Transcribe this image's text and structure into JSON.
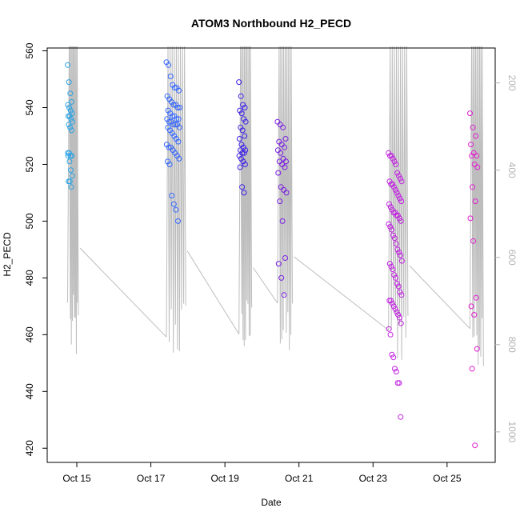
{
  "chart_data": {
    "type": "scatter",
    "title": "ATOM3 Northbound H2_PECD",
    "xlabel": "Date",
    "ylabel": "H2_PECD",
    "x_ticks": [
      {
        "label": "Oct 15",
        "day": 15
      },
      {
        "label": "Oct 17",
        "day": 17
      },
      {
        "label": "Oct 19",
        "day": 19
      },
      {
        "label": "Oct 21",
        "day": 21
      },
      {
        "label": "Oct 23",
        "day": 23
      },
      {
        "label": "Oct 25",
        "day": 25
      }
    ],
    "xlim": [
      "Oct 14.2",
      "Oct 26.3"
    ],
    "ylim": [
      415,
      561
    ],
    "y_ticks": [
      420,
      440,
      460,
      480,
      500,
      520,
      540,
      560
    ],
    "y2_ticks": [
      200,
      400,
      600,
      800,
      1000
    ],
    "y2lim": [
      120,
      1070
    ],
    "y2_color": "#b3b3b3",
    "grid": false,
    "colors": {
      "oct14": "#29a3e6",
      "oct17": "#3366ff",
      "oct19": "#3b1fe8",
      "oct20": "#7a1fe0",
      "oct23": "#c020e0",
      "oct25": "#e020d0",
      "line": "#bdbdbd"
    },
    "series": [
      {
        "color_key": "oct14",
        "day_from": 14.75,
        "day_to": 14.88,
        "values": [
          555,
          549,
          545,
          542,
          541,
          540,
          539,
          538,
          537,
          537,
          536,
          535,
          534,
          533,
          532,
          524,
          524,
          523,
          523,
          523,
          521,
          518,
          516,
          514,
          514,
          512
        ]
      },
      {
        "color_key": "oct17",
        "day_from": 17.42,
        "day_to": 17.78,
        "values": [
          556,
          555,
          551,
          548,
          547,
          547,
          546,
          544,
          543,
          542,
          541,
          541,
          540,
          540,
          539,
          538,
          537,
          537,
          536,
          536,
          536,
          535,
          535,
          534,
          534,
          534,
          533,
          533,
          532,
          531,
          530,
          529,
          528,
          527,
          526,
          526,
          525,
          524,
          523,
          522,
          521,
          520,
          509,
          506,
          504,
          500
        ]
      },
      {
        "color_key": "oct19",
        "day_from": 19.38,
        "day_to": 19.56,
        "values": [
          549,
          544,
          541,
          540,
          539,
          538,
          536,
          535,
          533,
          532,
          530,
          529,
          527,
          526,
          525,
          525,
          524,
          524,
          523,
          522,
          521,
          520,
          519,
          512,
          510
        ]
      },
      {
        "color_key": "oct20",
        "day_from": 20.42,
        "day_to": 20.66,
        "values": [
          535,
          534,
          533,
          529,
          528,
          527,
          526,
          525,
          524,
          522,
          521,
          521,
          520,
          519,
          517,
          512,
          511,
          510,
          507,
          500,
          487,
          485,
          480,
          474
        ]
      },
      {
        "color_key": "oct23",
        "day_from": 23.42,
        "day_to": 23.78,
        "values": [
          524,
          523,
          523,
          522,
          521,
          520,
          517,
          516,
          515,
          514,
          514,
          513,
          513,
          512,
          511,
          510,
          509,
          508,
          507,
          506,
          505,
          504,
          503,
          503,
          502,
          502,
          501,
          500,
          499,
          498,
          497,
          495,
          494,
          492,
          490,
          489,
          488,
          486,
          485,
          484,
          483,
          481,
          480,
          478,
          477,
          475,
          474,
          472,
          472,
          471,
          470,
          469,
          468,
          467,
          466,
          464,
          462,
          460,
          453,
          452,
          448,
          447,
          443,
          443,
          431
        ]
      },
      {
        "color_key": "oct25",
        "day_from": 25.62,
        "day_to": 25.82,
        "values": [
          538,
          533,
          530,
          527,
          524,
          523,
          523,
          520,
          519,
          512,
          507,
          501,
          493,
          473,
          470,
          467,
          455,
          448,
          421
        ]
      }
    ]
  }
}
